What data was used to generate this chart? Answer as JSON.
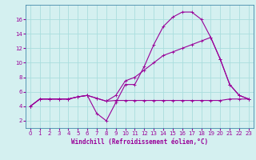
{
  "xlabel": "Windchill (Refroidissement éolien,°C)",
  "background_color": "#d4f0f0",
  "grid_color": "#aadddd",
  "line_color": "#990099",
  "spine_color": "#4488aa",
  "xlim": [
    -0.5,
    23.5
  ],
  "ylim": [
    1.0,
    18.0
  ],
  "xticks": [
    0,
    1,
    2,
    3,
    4,
    5,
    6,
    7,
    8,
    9,
    10,
    11,
    12,
    13,
    14,
    15,
    16,
    17,
    18,
    19,
    20,
    21,
    22,
    23
  ],
  "yticks": [
    2,
    4,
    6,
    8,
    10,
    12,
    14,
    16
  ],
  "curve1_x": [
    0,
    1,
    2,
    3,
    4,
    5,
    6,
    7,
    8,
    9,
    10,
    11,
    12,
    13,
    14,
    15,
    16,
    17,
    18,
    19,
    20,
    21,
    22,
    23
  ],
  "curve1_y": [
    4.0,
    5.0,
    5.0,
    5.0,
    5.0,
    5.3,
    5.5,
    5.1,
    4.7,
    4.8,
    4.8,
    4.8,
    4.8,
    4.8,
    4.8,
    4.8,
    4.8,
    4.8,
    4.8,
    4.8,
    4.8,
    5.0,
    5.0,
    5.0
  ],
  "curve2_x": [
    0,
    1,
    2,
    3,
    4,
    5,
    6,
    7,
    8,
    9,
    10,
    11,
    12,
    13,
    14,
    15,
    16,
    17,
    18,
    19,
    20,
    21,
    22,
    23
  ],
  "curve2_y": [
    4.0,
    5.0,
    5.0,
    5.0,
    5.0,
    5.3,
    5.5,
    3.0,
    2.0,
    4.5,
    7.0,
    7.0,
    9.5,
    12.5,
    15.0,
    16.3,
    17.0,
    17.0,
    16.0,
    13.5,
    10.5,
    7.0,
    5.5,
    5.0
  ],
  "curve3_x": [
    0,
    1,
    2,
    3,
    4,
    5,
    6,
    7,
    8,
    9,
    10,
    11,
    12,
    13,
    14,
    15,
    16,
    17,
    18,
    19,
    20,
    21,
    22,
    23
  ],
  "curve3_y": [
    4.0,
    5.0,
    5.0,
    5.0,
    5.0,
    5.3,
    5.5,
    5.1,
    4.7,
    5.5,
    7.5,
    8.0,
    9.0,
    10.0,
    11.0,
    11.5,
    12.0,
    12.5,
    13.0,
    13.5,
    10.5,
    7.0,
    5.5,
    5.0
  ],
  "xlabel_fontsize": 5.5,
  "tick_fontsize": 5.0,
  "marker_size": 2.5,
  "line_width": 0.8
}
